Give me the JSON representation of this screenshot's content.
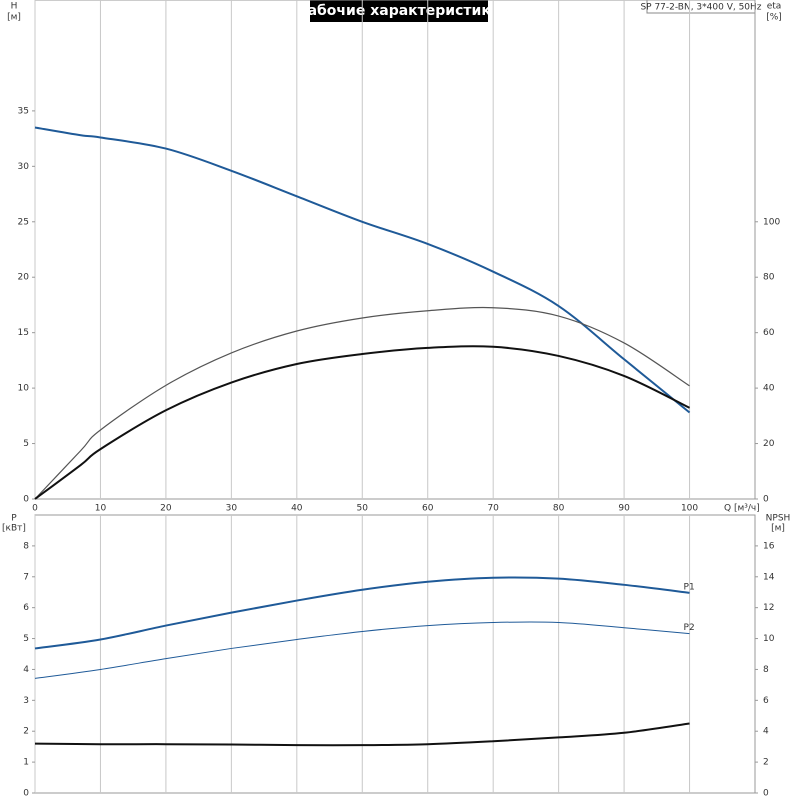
{
  "chart_data": [
    {
      "type": "line",
      "title": "Рабочие характеристики",
      "subtitle": "SP 77-2-BN, 3*400 V, 50Hz",
      "y_label": "H",
      "y_unit": "[м]",
      "y2_label": "eta",
      "y2_unit": "[%]",
      "x_label": "Q [м³/ч]",
      "x": [
        0,
        7,
        10,
        20,
        30,
        40,
        50,
        60,
        70,
        80,
        90,
        100
      ],
      "xlim": [
        0,
        110
      ],
      "xticks": [
        0,
        10,
        20,
        30,
        40,
        50,
        60,
        70,
        80,
        90,
        100
      ],
      "ylim": [
        0,
        45
      ],
      "yticks": [
        0,
        5,
        10,
        15,
        20,
        25,
        30,
        35
      ],
      "y2lim": [
        0,
        180
      ],
      "y2ticks": [
        0,
        20,
        40,
        60,
        80,
        100
      ],
      "grid": true,
      "series": [
        {
          "color": "#1f5a98",
          "line_width": 2,
          "values": [
            33.5,
            32.8,
            32.6,
            31.6,
            29.6,
            27.3,
            25.0,
            23.0,
            20.5,
            17.4,
            12.6,
            7.8
          ]
        },
        {
          "color": "#555555",
          "line_width": 1.2,
          "axis": "y2",
          "values": [
            0,
            17.5,
            24.9,
            41,
            52.7,
            60.6,
            65.3,
            67.9,
            69,
            66,
            56.3,
            40.8
          ]
        },
        {
          "color": "#111111",
          "line_width": 2,
          "axis": "y2",
          "values": [
            0,
            12.3,
            18,
            32,
            42,
            48.7,
            52.3,
            54.5,
            54.9,
            51.6,
            44.4,
            32.9
          ]
        }
      ]
    },
    {
      "type": "line",
      "y_label": "P",
      "y_unit": "[кВт]",
      "y2_label": "NPSH",
      "y2_unit": "[м]",
      "x": [
        0,
        10,
        20,
        30,
        40,
        50,
        60,
        70,
        80,
        90,
        100
      ],
      "xlim": [
        0,
        110
      ],
      "ylim": [
        0,
        9
      ],
      "yticks": [
        0,
        1,
        2,
        3,
        4,
        5,
        6,
        7,
        8
      ],
      "y2lim": [
        0,
        18
      ],
      "y2ticks": [
        0,
        2,
        4,
        6,
        8,
        10,
        12,
        14,
        16
      ],
      "grid": true,
      "series": [
        {
          "name": "P1",
          "color": "#1f5a98",
          "line_width": 2,
          "values": [
            4.68,
            4.97,
            5.42,
            5.84,
            6.23,
            6.58,
            6.84,
            6.97,
            6.94,
            6.74,
            6.48
          ]
        },
        {
          "name": "P2",
          "color": "#1f5a98",
          "line_width": 1,
          "values": [
            3.71,
            4.0,
            4.35,
            4.68,
            4.97,
            5.23,
            5.42,
            5.52,
            5.52,
            5.35,
            5.16
          ]
        },
        {
          "color": "#111111",
          "line_width": 2,
          "axis": "y2",
          "values": [
            3.2,
            3.16,
            3.16,
            3.14,
            3.1,
            3.1,
            3.16,
            3.35,
            3.6,
            3.9,
            4.5
          ]
        }
      ]
    }
  ]
}
